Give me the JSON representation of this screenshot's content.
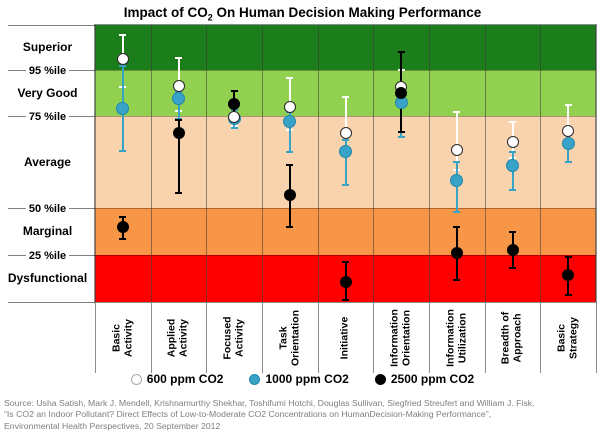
{
  "title": {
    "prefix": "Impact of CO",
    "sub": "2",
    "suffix": " On Human Decision Making Performance"
  },
  "y_axis": {
    "band_labels": [
      {
        "label": "Superior",
        "score": 91.9
      },
      {
        "label": "Very Good",
        "score": 75.5
      },
      {
        "label": "Average",
        "score": 50.5
      },
      {
        "label": "Marginal",
        "score": 25.5
      },
      {
        "label": "Dysfunctional",
        "score": 8.6
      }
    ],
    "percentile_lines": [
      {
        "label": "95 %ile",
        "score": 83.8
      },
      {
        "label": "75 %ile",
        "score": 67.1
      },
      {
        "label": "50 %ile",
        "score": 33.9
      },
      {
        "label": "25 %ile",
        "score": 17.1
      }
    ],
    "edge_scores": [
      100,
      0
    ]
  },
  "chart_data": {
    "type": "scatter",
    "title": "Impact of CO2 On Human Decision Making Performance",
    "y_scale": "Nonlinear percentile band axis; point values given as percent of plot height from bottom (0=chart bottom, 100=top). Percentile gridlines 95/75/50/25 %ile sit at axis positions 83.8/67.1/33.9/17.1.",
    "grid": "category columns separated by vertical lines; horizontal lines at band boundaries",
    "legend_position": "bottom",
    "bands": [
      {
        "name": "Superior",
        "from": 83.8,
        "to": 100,
        "color": "#1B7E1B"
      },
      {
        "name": "Very Good",
        "from": 67.1,
        "to": 83.8,
        "color": "#92D050"
      },
      {
        "name": "Average",
        "from": 33.9,
        "to": 67.1,
        "color": "#F9D3AD"
      },
      {
        "name": "Marginal",
        "from": 17.1,
        "to": 33.9,
        "color": "#F79646"
      },
      {
        "name": "Dysfunctional",
        "from": 0,
        "to": 17.1,
        "color": "#FF0000"
      }
    ],
    "categories": [
      "Basic\nActivity",
      "Applied\nActivity",
      "Focused\nActivity",
      "Task\nOrientation",
      "Initiative",
      "Information\nOrientation",
      "Information\nUtilization",
      "Breadth of\nApproach",
      "Basic\nStrategy"
    ],
    "series": [
      {
        "name": "600 ppm CO2",
        "marker_fill": "#FFFFFF",
        "marker_border": "#262626",
        "legend_border": "#A9A9A9",
        "whisker": "#FFFFFF",
        "size": 12,
        "points": [
          {
            "v": 87.7,
            "hi": 96.4,
            "lo": 77.6
          },
          {
            "v": 78.0,
            "hi": 88.1,
            "lo": 69.0
          },
          {
            "v": 66.8,
            "hi": 70.0,
            "lo": 63.5
          },
          {
            "v": 70.4,
            "hi": 80.9,
            "lo": 62.1
          },
          {
            "v": 61.0,
            "hi": 74.0,
            "lo": 54.9
          },
          {
            "v": 77.6,
            "hi": 83.8,
            "lo": 71.1
          },
          {
            "v": 54.9,
            "hi": 68.6,
            "lo": 47.7
          },
          {
            "v": 57.8,
            "hi": 65.0,
            "lo": 52.0
          },
          {
            "v": 61.7,
            "hi": 71.1,
            "lo": 56.7
          }
        ]
      },
      {
        "name": "1000 ppm CO2",
        "marker_fill": "#38A3C6",
        "marker_border": "#2188AC",
        "whisker": "#38A3C6",
        "size": 13,
        "points": [
          {
            "v": 70.0,
            "hi": 85.2,
            "lo": 54.5
          },
          {
            "v": 73.3,
            "hi": 75.8,
            "lo": 66.1
          },
          {
            "v": 66.4,
            "hi": 69.3,
            "lo": 62.8
          },
          {
            "v": 65.0,
            "hi": 68.6,
            "lo": 54.2
          },
          {
            "v": 54.2,
            "hi": 58.5,
            "lo": 42.2
          },
          {
            "v": 72.2,
            "hi": 76.5,
            "lo": 59.6
          },
          {
            "v": 44.0,
            "hi": 50.5,
            "lo": 32.5
          },
          {
            "v": 49.1,
            "hi": 54.2,
            "lo": 40.4
          },
          {
            "v": 57.4,
            "hi": 61.0,
            "lo": 50.5
          }
        ]
      },
      {
        "name": "2500 ppm CO2",
        "marker_fill": "#000000",
        "marker_border": "#000000",
        "whisker": "#000000",
        "size": 12,
        "points": [
          {
            "v": 27.1,
            "hi": 30.7,
            "lo": 22.7
          },
          {
            "v": 61.0,
            "hi": 65.7,
            "lo": 39.4
          },
          {
            "v": 71.5,
            "hi": 76.2,
            "lo": 67.1
          },
          {
            "v": 38.6,
            "hi": 49.5,
            "lo": 27.1
          },
          {
            "v": 7.2,
            "hi": 14.4,
            "lo": 0.7
          },
          {
            "v": 75.5,
            "hi": 90.3,
            "lo": 61.4
          },
          {
            "v": 17.7,
            "hi": 27.1,
            "lo": 7.9
          },
          {
            "v": 18.8,
            "hi": 25.3,
            "lo": 12.3
          },
          {
            "v": 9.7,
            "hi": 16.2,
            "lo": 2.5
          }
        ]
      }
    ],
    "marker_draw_order": [
      1,
      0,
      2
    ]
  },
  "legend": {
    "items": [
      "600 ppm CO2",
      "1000 ppm CO2",
      "2500 ppm CO2"
    ]
  },
  "source": {
    "lines": [
      "Source: Usha Satish, Mark J. Mendell, Krishnamurthy Shekhar, Toshifumi Hotchi, Douglas Sullivan, Siegfried Streufert and William J. Fisk,",
      "“Is CO2 an Indoor Pollutant? Direct Effects of Low-to-Moderate CO2 Concentrations on HumanDecision-Making Performance”,",
      "Environmental Health Perspectives, 20 September 2012"
    ]
  },
  "colors": {
    "column_separator": "#3C3C3C",
    "axis_line": "#808080",
    "band_edge": "#404040",
    "source_text": "#7F7F7F"
  }
}
